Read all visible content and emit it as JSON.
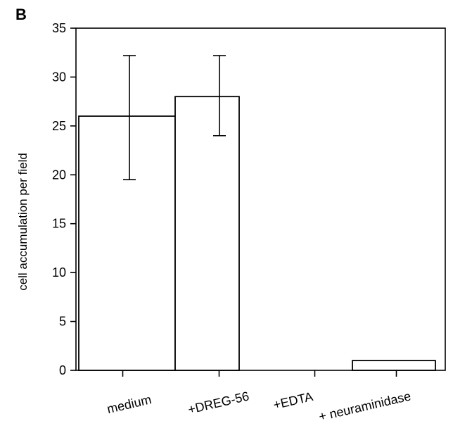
{
  "panel_label": "B",
  "chart_data": {
    "type": "bar",
    "categories": [
      "medium",
      "+DREG-56",
      "+EDTA",
      "+ neuraminidase"
    ],
    "values": [
      26,
      28,
      0,
      1
    ],
    "error_low": [
      19.5,
      24,
      null,
      null
    ],
    "error_high": [
      32.2,
      32.2,
      null,
      null
    ],
    "title": "",
    "xlabel": "",
    "ylabel": "cell accumulation per field",
    "ylim": [
      0,
      35
    ],
    "yticks": [
      0,
      5,
      10,
      15,
      20,
      25,
      30,
      35
    ],
    "grid": false,
    "bar_fill": "#ffffff",
    "bar_stroke": "#000000"
  }
}
